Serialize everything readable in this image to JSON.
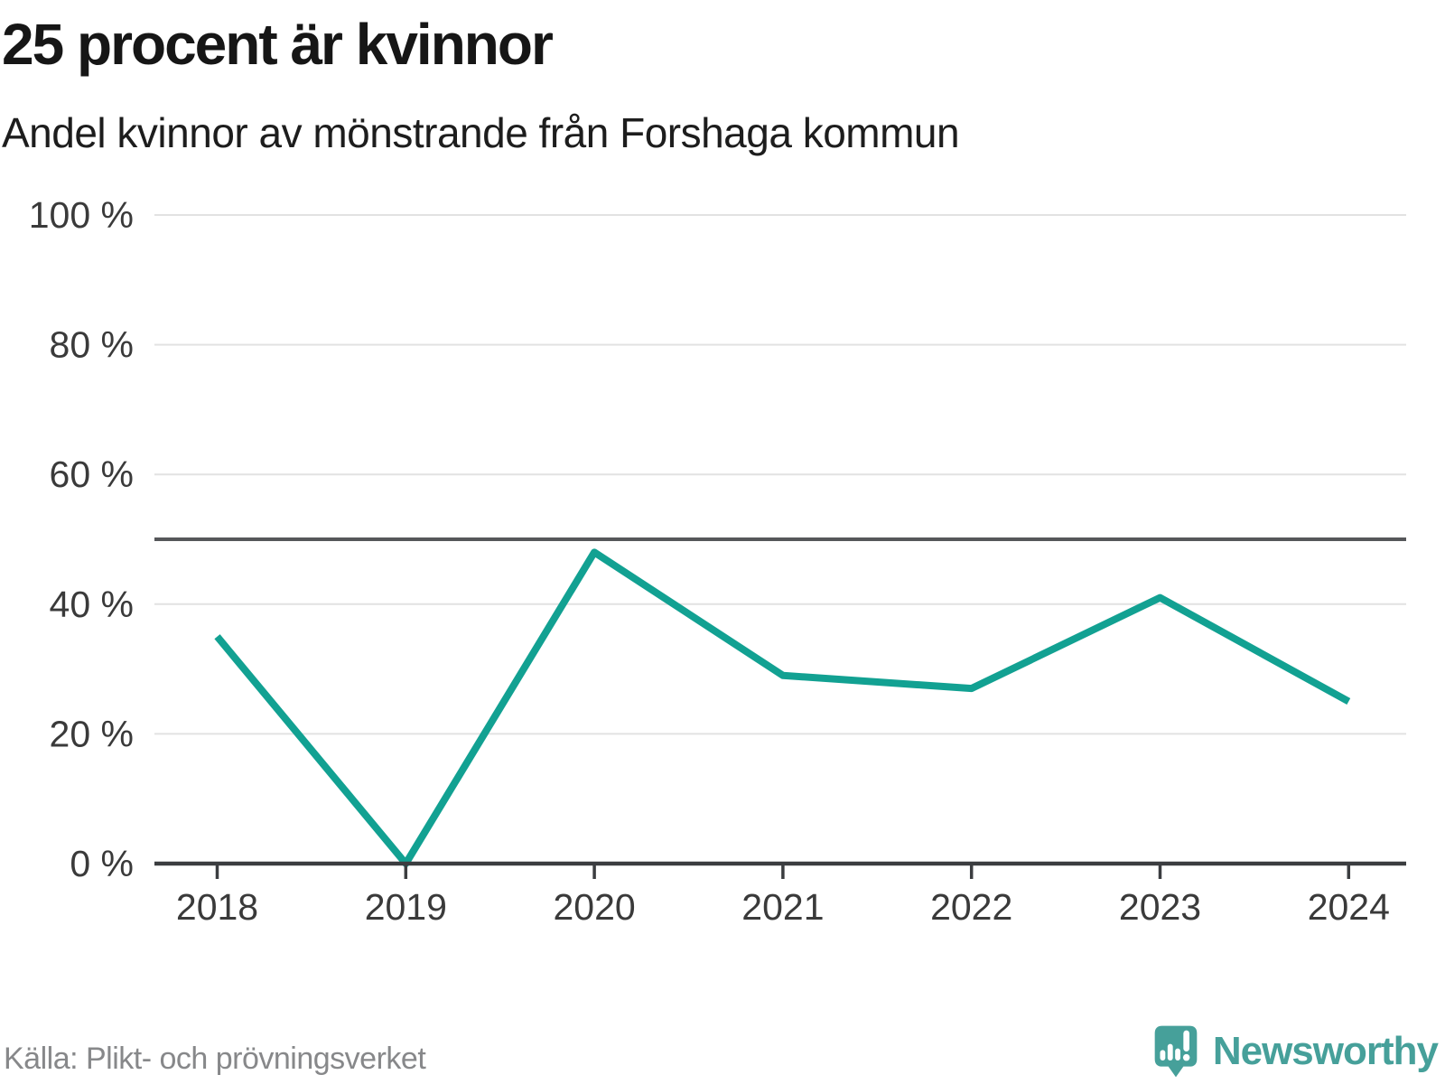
{
  "header": {
    "title": "25 procent är kvinnor",
    "subtitle": "Andel kvinnor av mönstrande från Forshaga kommun"
  },
  "chart_data": {
    "type": "line",
    "title": "25 procent är kvinnor",
    "subtitle": "Andel kvinnor av mönstrande från Forshaga kommun",
    "x": [
      2018,
      2019,
      2020,
      2021,
      2022,
      2023,
      2024
    ],
    "series": [
      {
        "name": "Andel kvinnor av mönstrande",
        "values": [
          35,
          0,
          48,
          29,
          27,
          41,
          25
        ]
      }
    ],
    "unit": "%",
    "ylim": [
      0,
      100
    ],
    "y_ticks": [
      0,
      20,
      40,
      60,
      80,
      100
    ],
    "y_tick_suffix": " %",
    "reference_line": 50,
    "grid": true,
    "legend": "none",
    "line_color": "#12a192",
    "grid_color": "#e2e2e2",
    "reference_line_color": "#56575a",
    "axis_color": "#3b3d40",
    "tick_label_color": "#3a3a3a"
  },
  "footer": {
    "source": "Källa: Plikt- och prövningsverket"
  },
  "brand": {
    "name": "Newsworthy",
    "color": "#46a09a",
    "logo_icon": "newsworthy-speech-bubble-bar-chart-icon"
  }
}
